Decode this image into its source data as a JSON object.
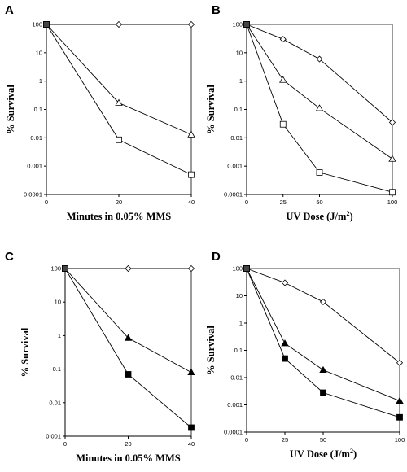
{
  "chart_data": [
    {
      "panel": "A",
      "type": "line",
      "x": [
        0,
        20,
        40
      ],
      "x_ticks": [
        "0",
        "20",
        "40"
      ],
      "y_ticks": [
        "100",
        "10",
        "1",
        "0.1",
        "0.01",
        "0.001",
        "0.0001"
      ],
      "xlabel": "Minutes in 0.05% MMS",
      "ylabel": "% Survival",
      "yscale": "log",
      "xlim": [
        0,
        40
      ],
      "ylim": [
        0.0001,
        100
      ],
      "series": [
        {
          "marker": "diamond-open",
          "values": [
            100,
            100,
            100
          ]
        },
        {
          "marker": "triangle-open",
          "values": [
            100,
            0.17,
            0.013
          ]
        },
        {
          "marker": "square-open",
          "values": [
            100,
            0.0085,
            0.0005
          ]
        }
      ]
    },
    {
      "panel": "B",
      "type": "line",
      "x": [
        0,
        25,
        50,
        100
      ],
      "x_ticks": [
        "0",
        "25",
        "50",
        "100"
      ],
      "y_ticks": [
        "100",
        "10",
        "1",
        "0.1",
        "0.01",
        "0.001",
        "0.0001"
      ],
      "xlabel": "UV Dose (J/m",
      "xlabel_sup": "2",
      "xlabel_end": ")",
      "ylabel": "% Survival",
      "yscale": "log",
      "xlim": [
        0,
        100
      ],
      "ylim": [
        0.0001,
        100
      ],
      "series": [
        {
          "marker": "diamond-open",
          "values": [
            100,
            30,
            6,
            0.035
          ]
        },
        {
          "marker": "triangle-open",
          "values": [
            100,
            1.1,
            0.11,
            0.0018
          ]
        },
        {
          "marker": "square-open",
          "values": [
            100,
            0.03,
            0.0006,
            0.00012
          ]
        }
      ]
    },
    {
      "panel": "C",
      "type": "line",
      "x": [
        0,
        20,
        40
      ],
      "x_ticks": [
        "0",
        "20",
        "40"
      ],
      "y_ticks": [
        "100",
        "10",
        "1",
        "0.1",
        "0.01",
        "0.001"
      ],
      "xlabel": "Minutes in 0.05% MMS",
      "ylabel": "% Survival",
      "yscale": "log",
      "xlim": [
        0,
        40
      ],
      "ylim": [
        0.001,
        100
      ],
      "series": [
        {
          "marker": "diamond-open",
          "values": [
            100,
            100,
            100
          ]
        },
        {
          "marker": "triangle-filled",
          "values": [
            100,
            0.85,
            0.08
          ]
        },
        {
          "marker": "square-filled",
          "values": [
            100,
            0.07,
            0.0018
          ]
        }
      ]
    },
    {
      "panel": "D",
      "type": "line",
      "x": [
        0,
        25,
        50,
        100
      ],
      "x_ticks": [
        "0",
        "25",
        "50",
        "100"
      ],
      "y_ticks": [
        "100",
        "10",
        "1",
        "0.1",
        "0.01",
        "0.001",
        "0.0001"
      ],
      "xlabel": "UV Dose (J/m",
      "xlabel_sup": "2",
      "xlabel_end": ")",
      "ylabel": "% Survival",
      "yscale": "log",
      "xlim": [
        0,
        100
      ],
      "ylim": [
        0.0001,
        100
      ],
      "series": [
        {
          "marker": "diamond-open",
          "values": [
            100,
            30,
            6,
            0.035
          ]
        },
        {
          "marker": "triangle-filled",
          "values": [
            100,
            0.18,
            0.019,
            0.0014
          ]
        },
        {
          "marker": "square-filled",
          "values": [
            100,
            0.05,
            0.0028,
            0.00035
          ]
        }
      ]
    }
  ]
}
